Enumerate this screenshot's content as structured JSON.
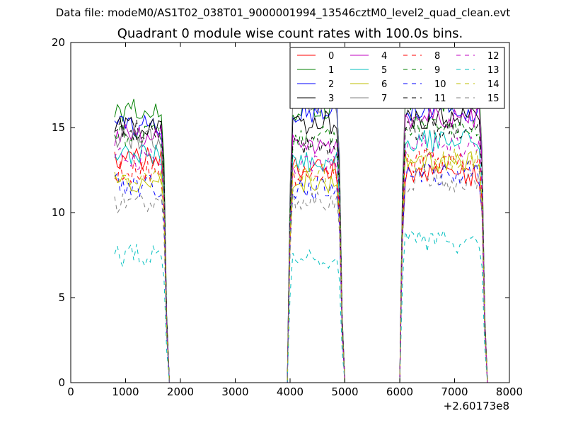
{
  "figure": {
    "suptitle": "Data file: modeM0/AS1T02_038T01_9000001994_13546cztM0_level2_quad_clean.evt",
    "offset_label": "+2.60173e8"
  },
  "chart_data": {
    "type": "line",
    "title": "Quadrant 0 module wise count rates with 100.0s bins.",
    "xlabel": "",
    "ylabel": "",
    "xlim": [
      0,
      8000
    ],
    "ylim": [
      0,
      20
    ],
    "x_ticks": [
      "0",
      "1000",
      "2000",
      "3000",
      "4000",
      "5000",
      "6000",
      "7000",
      "8000"
    ],
    "y_ticks": [
      "0",
      "5",
      "10",
      "15",
      "20"
    ],
    "x_tick_values": [
      0,
      1000,
      2000,
      3000,
      4000,
      5000,
      6000,
      7000,
      8000
    ],
    "y_tick_values": [
      0,
      5,
      10,
      15,
      20
    ],
    "x_offset": "+2.60173e8",
    "grid": false,
    "legend": {
      "placement": "top-right",
      "columns": 4
    },
    "segments": [
      {
        "x_start": 800,
        "x_end": 1800,
        "step": 50
      },
      {
        "x_start": 3950,
        "x_end": 5000,
        "step": 50
      },
      {
        "x_start": 6000,
        "x_end": 7600,
        "step": 50
      }
    ],
    "series": [
      {
        "name": "0",
        "color": "#ff0000",
        "dash": "solid",
        "levels": [
          13.2,
          12.6,
          12.2
        ]
      },
      {
        "name": "1",
        "color": "#008000",
        "dash": "solid",
        "levels": [
          16.0,
          16.1,
          16.6
        ]
      },
      {
        "name": "2",
        "color": "#0000ff",
        "dash": "solid",
        "levels": [
          15.0,
          15.9,
          16.0
        ]
      },
      {
        "name": "3",
        "color": "#000000",
        "dash": "solid",
        "levels": [
          15.0,
          15.3,
          15.6
        ]
      },
      {
        "name": "4",
        "color": "#c000c0",
        "dash": "solid",
        "levels": [
          14.5,
          14.0,
          15.6
        ]
      },
      {
        "name": "5",
        "color": "#00bfbf",
        "dash": "solid",
        "levels": [
          13.4,
          13.0,
          14.2
        ]
      },
      {
        "name": "6",
        "color": "#bfbf00",
        "dash": "solid",
        "levels": [
          11.9,
          11.8,
          12.9
        ]
      },
      {
        "name": "7",
        "color": "#808080",
        "dash": "solid",
        "levels": [
          14.4,
          16.4,
          16.8
        ]
      },
      {
        "name": "8",
        "color": "#ff0000",
        "dash": "dashed",
        "levels": [
          12.4,
          12.1,
          13.0
        ]
      },
      {
        "name": "9",
        "color": "#008000",
        "dash": "dashed",
        "levels": [
          14.6,
          14.5,
          15.1
        ]
      },
      {
        "name": "10",
        "color": "#0000ff",
        "dash": "dashed",
        "levels": [
          11.6,
          11.4,
          12.3
        ]
      },
      {
        "name": "11",
        "color": "#000000",
        "dash": "dashed",
        "levels": [
          14.8,
          14.0,
          14.9
        ]
      },
      {
        "name": "12",
        "color": "#c000c0",
        "dash": "dashed",
        "levels": [
          13.1,
          12.9,
          13.9
        ]
      },
      {
        "name": "13",
        "color": "#00bfbf",
        "dash": "dashed",
        "levels": [
          7.5,
          7.3,
          8.3
        ]
      },
      {
        "name": "14",
        "color": "#bfbf00",
        "dash": "dashed",
        "levels": [
          12.1,
          12.2,
          13.1
        ]
      },
      {
        "name": "15",
        "color": "#808080",
        "dash": "dashed",
        "levels": [
          10.6,
          10.8,
          11.9
        ]
      }
    ]
  }
}
